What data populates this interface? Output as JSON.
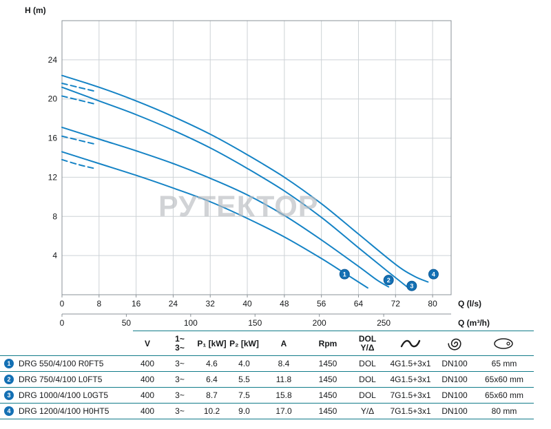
{
  "watermark": "РУТЕКТОР",
  "colors": {
    "curve": "#1583c5",
    "marker_fill": "#1470b4",
    "marker_stroke": "#0d5a97",
    "rule": "#0f7a88",
    "grid": "#cdd2d6",
    "axis": "#8a9197",
    "text": "#16181a",
    "watermark": "#b9bdc1"
  },
  "chart_data": {
    "type": "line",
    "title": "",
    "xlabel": "Q (l/s)",
    "x2label": "Q (m³/h)",
    "ylabel": "H (m)",
    "xlim": [
      0,
      84
    ],
    "ylim": [
      0,
      28
    ],
    "x_ticks": [
      0,
      8,
      16,
      24,
      32,
      40,
      48,
      56,
      64,
      72,
      80
    ],
    "y_ticks": [
      4,
      8,
      12,
      16,
      20,
      24
    ],
    "x2_ticks": [
      0,
      50,
      100,
      150,
      200,
      250
    ],
    "x2_per_x": 3.6,
    "grid": true,
    "series": [
      {
        "name": "DRG 550/4/100 R0FT5",
        "marker": "1",
        "marker_at": [
          61,
          2.1
        ],
        "dashed": [
          [
            0,
            13.8
          ],
          [
            3.5,
            13.3
          ],
          [
            7,
            12.9
          ]
        ],
        "points": [
          [
            0,
            14.6
          ],
          [
            8,
            13.4
          ],
          [
            16,
            12.2
          ],
          [
            24,
            10.9
          ],
          [
            32,
            9.5
          ],
          [
            40,
            7.8
          ],
          [
            48,
            5.9
          ],
          [
            56,
            3.7
          ],
          [
            61,
            2.2
          ],
          [
            66,
            0.7
          ]
        ]
      },
      {
        "name": "DRG 750/4/100 L0FT5",
        "marker": "2",
        "marker_at": [
          70.5,
          1.5
        ],
        "dashed": [
          [
            0,
            16.2
          ],
          [
            3.5,
            15.8
          ],
          [
            7,
            15.4
          ]
        ],
        "points": [
          [
            0,
            17.1
          ],
          [
            8,
            15.9
          ],
          [
            16,
            14.7
          ],
          [
            24,
            13.4
          ],
          [
            32,
            11.9
          ],
          [
            40,
            10.2
          ],
          [
            48,
            8.1
          ],
          [
            56,
            5.6
          ],
          [
            64,
            2.9
          ],
          [
            68,
            1.5
          ],
          [
            70.5,
            0.8
          ]
        ]
      },
      {
        "name": "DRG 1000/4/100 L0GT5",
        "marker": "3",
        "marker_at": [
          75.5,
          0.9
        ],
        "dashed": [
          [
            0,
            20.3
          ],
          [
            3.5,
            19.9
          ],
          [
            7,
            19.5
          ]
        ],
        "points": [
          [
            0,
            21.2
          ],
          [
            8,
            19.8
          ],
          [
            16,
            18.4
          ],
          [
            24,
            16.8
          ],
          [
            32,
            15.0
          ],
          [
            40,
            12.9
          ],
          [
            48,
            10.6
          ],
          [
            56,
            7.9
          ],
          [
            64,
            4.8
          ],
          [
            70,
            2.5
          ],
          [
            74.5,
            0.8
          ]
        ]
      },
      {
        "name": "DRG 1200/4/100 H0HT5",
        "marker": "4",
        "marker_at": [
          80.2,
          2.1
        ],
        "dashed": [
          [
            0,
            21.6
          ],
          [
            3.5,
            21.2
          ],
          [
            7,
            20.8
          ]
        ],
        "points": [
          [
            0,
            22.4
          ],
          [
            8,
            21.2
          ],
          [
            16,
            19.8
          ],
          [
            24,
            18.2
          ],
          [
            32,
            16.4
          ],
          [
            40,
            14.3
          ],
          [
            48,
            12.0
          ],
          [
            56,
            9.3
          ],
          [
            64,
            6.2
          ],
          [
            72,
            3.1
          ],
          [
            76,
            1.9
          ],
          [
            79,
            1.3
          ]
        ]
      }
    ]
  },
  "icons": {
    "cable": "cable-icon",
    "pump": "impeller-icon",
    "outlet": "outlet-port-icon"
  },
  "table": {
    "headers": {
      "v": "V",
      "ph1": "1~",
      "ph3": "3~",
      "p1": "P₁ [kW]",
      "p2": "P₂ [kW]",
      "a": "A",
      "rpm": "Rpm",
      "dol": "DOL",
      "yd": "Y/Δ"
    },
    "rows": [
      {
        "num": "1",
        "model": "DRG 550/4/100 R0FT5",
        "v": "400",
        "ph": "3~",
        "p1": "4.6",
        "p2": "4.0",
        "a": "8.4",
        "rpm": "1450",
        "start": "DOL",
        "cable": "4G1.5+3x1",
        "dn": "DN100",
        "outlet": "65 mm"
      },
      {
        "num": "2",
        "model": "DRG 750/4/100 L0FT5",
        "v": "400",
        "ph": "3~",
        "p1": "6.4",
        "p2": "5.5",
        "a": "11.8",
        "rpm": "1450",
        "start": "DOL",
        "cable": "4G1.5+3x1",
        "dn": "DN100",
        "outlet": "65x60 mm"
      },
      {
        "num": "3",
        "model": "DRG 1000/4/100 L0GT5",
        "v": "400",
        "ph": "3~",
        "p1": "8.7",
        "p2": "7.5",
        "a": "15.8",
        "rpm": "1450",
        "start": "DOL",
        "cable": "7G1.5+3x1",
        "dn": "DN100",
        "outlet": "65x60 mm"
      },
      {
        "num": "4",
        "model": "DRG 1200/4/100 H0HT5",
        "v": "400",
        "ph": "3~",
        "p1": "10.2",
        "p2": "9.0",
        "a": "17.0",
        "rpm": "1450",
        "start": "Y/Δ",
        "cable": "7G1.5+3x1",
        "dn": "DN100",
        "outlet": "80 mm"
      }
    ]
  }
}
